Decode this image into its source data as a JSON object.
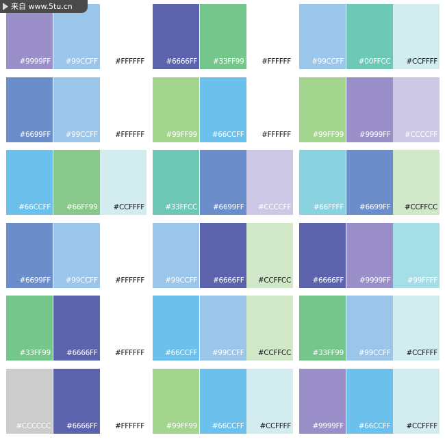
{
  "watermark": "来自 www.5tu.cn",
  "palettes": [
    {
      "swatches": [
        {
          "label": "#9999FF",
          "fill": "#9a8fc8"
        },
        {
          "label": "#99CCFF",
          "fill": "#9cc5ea"
        },
        {
          "label": "#FFFFFF",
          "fill": "#ffffff"
        }
      ]
    },
    {
      "swatches": [
        {
          "label": "#6666FF",
          "fill": "#5d62ad"
        },
        {
          "label": "#33FF99",
          "fill": "#74c68a"
        },
        {
          "label": "#FFFFFF",
          "fill": "#ffffff"
        }
      ]
    },
    {
      "swatches": [
        {
          "label": "#99CCFF",
          "fill": "#9cc5ea"
        },
        {
          "label": "#00FFCC",
          "fill": "#6dc8b6"
        },
        {
          "label": "#CCFFFF",
          "fill": "#d3ecf0"
        }
      ]
    },
    {
      "swatches": [
        {
          "label": "#6699FF",
          "fill": "#6b8ecb"
        },
        {
          "label": "#99CCFF",
          "fill": "#9cc5ea"
        },
        {
          "label": "#FFFFFF",
          "fill": "#ffffff"
        }
      ]
    },
    {
      "swatches": [
        {
          "label": "#99FF99",
          "fill": "#a3d58e"
        },
        {
          "label": "#66CCFF",
          "fill": "#6bc1ec"
        },
        {
          "label": "#FFFFFF",
          "fill": "#ffffff"
        }
      ]
    },
    {
      "swatches": [
        {
          "label": "#99FF99",
          "fill": "#a3d58e"
        },
        {
          "label": "#9999FF",
          "fill": "#9a8fc8"
        },
        {
          "label": "#CCCCFF",
          "fill": "#ccc8e6"
        }
      ]
    },
    {
      "swatches": [
        {
          "label": "#66CCFF",
          "fill": "#6bc1ec"
        },
        {
          "label": "#66FF99",
          "fill": "#88c98b"
        },
        {
          "label": "#CCFFFF",
          "fill": "#d3ecf0"
        }
      ]
    },
    {
      "swatches": [
        {
          "label": "#33FFCC",
          "fill": "#6fc8b5"
        },
        {
          "label": "#6699FF",
          "fill": "#6b8ecb"
        },
        {
          "label": "#CCCCFF",
          "fill": "#ccc8e6"
        }
      ]
    },
    {
      "swatches": [
        {
          "label": "#66FFFF",
          "fill": "#88d3df"
        },
        {
          "label": "#6699FF",
          "fill": "#6b8ecb"
        },
        {
          "label": "#CCFFCC",
          "fill": "#d0e7c8"
        }
      ]
    },
    {
      "swatches": [
        {
          "label": "#6699FF",
          "fill": "#6b8ecb"
        },
        {
          "label": "#99CCFF",
          "fill": "#9cc5ea"
        },
        {
          "label": "#FFFFFF",
          "fill": "#ffffff"
        }
      ]
    },
    {
      "swatches": [
        {
          "label": "#99CCFF",
          "fill": "#9cc5ea"
        },
        {
          "label": "#6666FF",
          "fill": "#5d62ad"
        },
        {
          "label": "#CCFFCC",
          "fill": "#d0e7c8"
        }
      ]
    },
    {
      "swatches": [
        {
          "label": "#6666FF",
          "fill": "#5d62ad"
        },
        {
          "label": "#9999FF",
          "fill": "#9a8fc8"
        },
        {
          "label": "#99FFFF",
          "fill": "#a6dee6"
        }
      ]
    },
    {
      "swatches": [
        {
          "label": "#33FF99",
          "fill": "#74c68a"
        },
        {
          "label": "#6666FF",
          "fill": "#5d62ad"
        },
        {
          "label": "#FFFFFF",
          "fill": "#ffffff"
        }
      ]
    },
    {
      "swatches": [
        {
          "label": "#66CCFF",
          "fill": "#6bc1ec"
        },
        {
          "label": "#99CCFF",
          "fill": "#9cc5ea"
        },
        {
          "label": "#CCFFCC",
          "fill": "#d0e7c8"
        }
      ]
    },
    {
      "swatches": [
        {
          "label": "#33FF99",
          "fill": "#74c68a"
        },
        {
          "label": "#99CCFF",
          "fill": "#9cc5ea"
        },
        {
          "label": "#CCFFFF",
          "fill": "#d3ecf0"
        }
      ]
    },
    {
      "swatches": [
        {
          "label": "#CCCCCC",
          "fill": "#cccccc"
        },
        {
          "label": "#6666FF",
          "fill": "#5d62ad"
        },
        {
          "label": "#FFFFFF",
          "fill": "#ffffff"
        }
      ]
    },
    {
      "swatches": [
        {
          "label": "#99FF99",
          "fill": "#a3d58e"
        },
        {
          "label": "#66CCFF",
          "fill": "#6bc1ec"
        },
        {
          "label": "#CCFFFF",
          "fill": "#d3ecf0"
        }
      ]
    },
    {
      "swatches": [
        {
          "label": "#9999FF",
          "fill": "#9a8fc8"
        },
        {
          "label": "#66CCFF",
          "fill": "#6bc1ec"
        },
        {
          "label": "#CCFFFF",
          "fill": "#d3ecf0"
        }
      ]
    }
  ]
}
